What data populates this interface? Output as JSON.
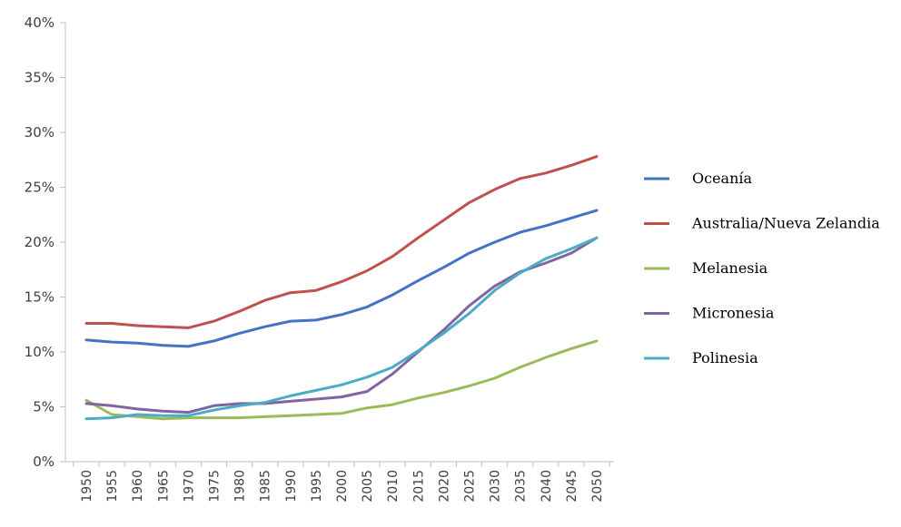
{
  "chart_data": {
    "type": "line",
    "title": "",
    "xlabel": "",
    "ylabel": "",
    "x": [
      "1950",
      "1955",
      "1960",
      "1965",
      "1970",
      "1975",
      "1980",
      "1985",
      "1990",
      "1995",
      "2000",
      "2005",
      "2010",
      "2015",
      "2020",
      "2025",
      "2030",
      "2035",
      "2040",
      "2045",
      "2050"
    ],
    "yticks": [
      "0%",
      "5%",
      "10%",
      "15%",
      "20%",
      "25%",
      "30%",
      "35%",
      "40%"
    ],
    "ylim": [
      0,
      40
    ],
    "grid": false,
    "legend_position": "right",
    "series": [
      {
        "name": "Oceanía",
        "color": "#4472C4",
        "values": [
          11.1,
          10.9,
          10.8,
          10.6,
          10.5,
          11.0,
          11.7,
          12.3,
          12.8,
          12.9,
          13.4,
          14.1,
          15.2,
          16.5,
          17.7,
          19.0,
          20.0,
          20.9,
          21.5,
          22.2,
          22.9
        ]
      },
      {
        "name": "Australia/Nueva Zelandia",
        "color": "#C0504D",
        "values": [
          12.6,
          12.6,
          12.4,
          12.3,
          12.2,
          12.8,
          13.7,
          14.7,
          15.4,
          15.6,
          16.4,
          17.4,
          18.7,
          20.4,
          22.0,
          23.6,
          24.8,
          25.8,
          26.3,
          27.0,
          27.8
        ]
      },
      {
        "name": "Melanesia",
        "color": "#9BBB59",
        "values": [
          5.6,
          4.3,
          4.1,
          3.9,
          4.0,
          4.0,
          4.0,
          4.1,
          4.2,
          4.3,
          4.4,
          4.9,
          5.2,
          5.8,
          6.3,
          6.9,
          7.6,
          8.6,
          9.5,
          10.3,
          11.0
        ]
      },
      {
        "name": "Micronesia",
        "color": "#8064A2",
        "values": [
          5.3,
          5.1,
          4.8,
          4.6,
          4.5,
          5.1,
          5.3,
          5.3,
          5.5,
          5.7,
          5.9,
          6.4,
          8.0,
          10.0,
          12.0,
          14.2,
          16.0,
          17.3,
          18.1,
          19.0,
          20.4
        ]
      },
      {
        "name": "Polinesia",
        "color": "#4BACC6",
        "values": [
          3.9,
          4.0,
          4.3,
          4.2,
          4.2,
          4.7,
          5.1,
          5.4,
          6.0,
          6.5,
          7.0,
          7.7,
          8.6,
          10.1,
          11.7,
          13.5,
          15.6,
          17.2,
          18.5,
          19.4,
          20.4
        ]
      }
    ]
  }
}
